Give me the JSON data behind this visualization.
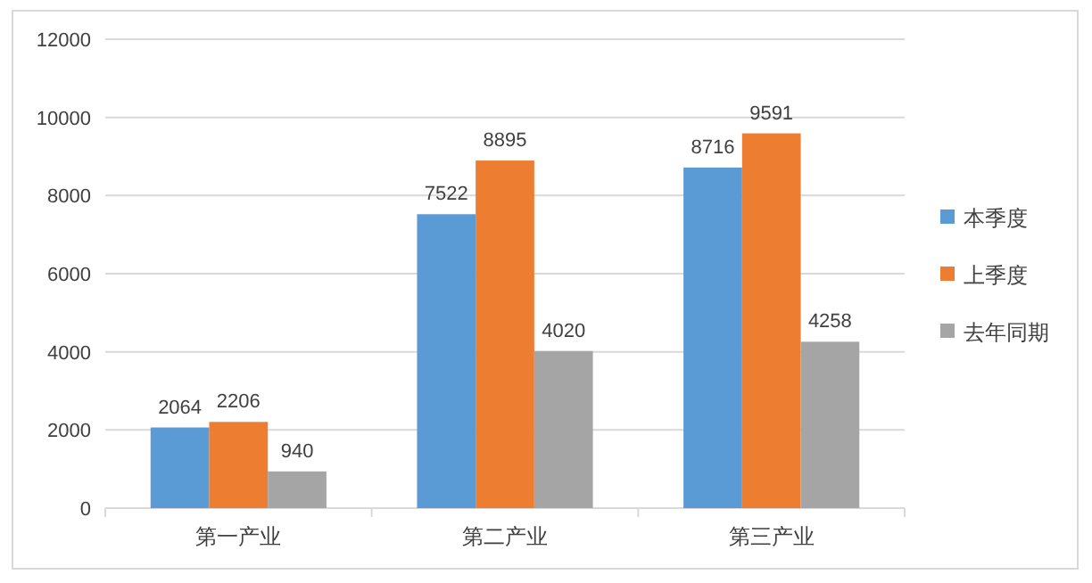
{
  "chart_data": {
    "type": "bar",
    "categories": [
      "第一产业",
      "第二产业",
      "第三产业"
    ],
    "series": [
      {
        "name": "本季度",
        "color": "#5b9bd5",
        "values": [
          2064,
          7522,
          8716
        ]
      },
      {
        "name": "上季度",
        "color": "#ed7d31",
        "values": [
          2206,
          8895,
          9591
        ]
      },
      {
        "name": "去年同期",
        "color": "#a5a5a5",
        "values": [
          940,
          4020,
          4258
        ]
      }
    ],
    "ylim": [
      0,
      12000
    ],
    "yticks": [
      0,
      2000,
      4000,
      6000,
      8000,
      10000,
      12000
    ],
    "grid": "y",
    "legend": "right",
    "data_labels": true
  }
}
